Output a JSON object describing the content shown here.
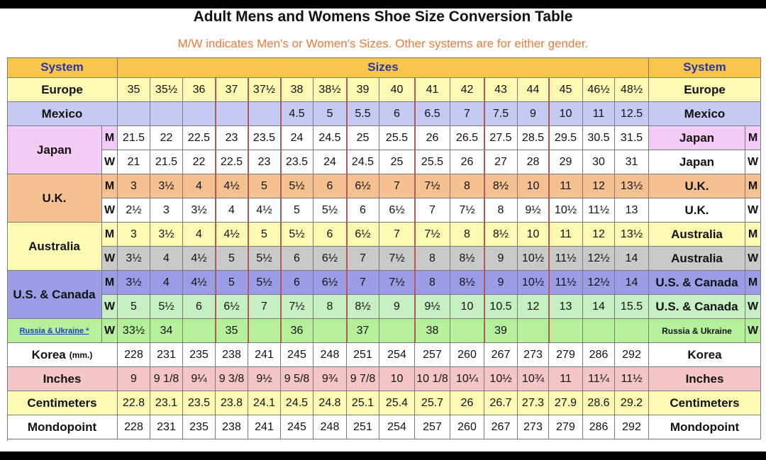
{
  "title": "Adult Mens and Womens Shoe Size Conversion Table",
  "subtitle": "M/W indicates Men's or Women's Sizes. Other systems are for either gender.",
  "header": {
    "system_left": "System",
    "sizes": "Sizes",
    "system_right": "System"
  },
  "colors": {
    "header": "#f9c64d",
    "europe": "#fdfbb3",
    "mexico": "#c6c9f2",
    "japan": "#f3cbf4",
    "uk": "#f6c190",
    "australia": "#fdfbb3",
    "australia_w": "#c9c9c9",
    "us": "#9a9de6",
    "us_w": "#c6f0c3",
    "russia": "#b7f09a",
    "inches": "#f5c6c6",
    "cm": "#fdfbb3",
    "white": "#ffffff"
  },
  "rows": [
    {
      "key": "europe",
      "label": "Europe",
      "mw": "",
      "right": "Europe",
      "right_mw": "",
      "cells": [
        "35",
        "35½",
        "36",
        "37",
        "37½",
        "38",
        "38½",
        "39",
        "40",
        "41",
        "42",
        "43",
        "44",
        "45",
        "46½",
        "48½"
      ]
    },
    {
      "key": "mexico",
      "label": "Mexico",
      "mw": "",
      "right": "Mexico",
      "right_mw": "",
      "cells": [
        "",
        "",
        "",
        "",
        "",
        "4.5",
        "5",
        "5.5",
        "6",
        "6.5",
        "7",
        "7.5",
        "9",
        "10",
        "11",
        "12.5"
      ]
    },
    {
      "key": "japan_m",
      "label": "Japan",
      "mw": "M",
      "right": "Japan",
      "right_mw": "M",
      "cells": [
        "21.5",
        "22",
        "22.5",
        "23",
        "23.5",
        "24",
        "24.5",
        "25",
        "25.5",
        "26",
        "26.5",
        "27.5",
        "28.5",
        "29.5",
        "30.5",
        "31.5"
      ]
    },
    {
      "key": "japan_w",
      "label": "",
      "mw": "W",
      "right": "Japan",
      "right_mw": "W",
      "cells": [
        "21",
        "21.5",
        "22",
        "22.5",
        "23",
        "23.5",
        "24",
        "24.5",
        "25",
        "25.5",
        "26",
        "27",
        "28",
        "29",
        "30",
        "31"
      ]
    },
    {
      "key": "uk_m",
      "label": "U.K.",
      "mw": "M",
      "right": "U.K.",
      "right_mw": "M",
      "cells": [
        "3",
        "3½",
        "4",
        "4½",
        "5",
        "5½",
        "6",
        "6½",
        "7",
        "7½",
        "8",
        "8½",
        "10",
        "11",
        "12",
        "13½"
      ]
    },
    {
      "key": "uk_w",
      "label": "",
      "mw": "W",
      "right": "U.K.",
      "right_mw": "W",
      "cells": [
        "2½",
        "3",
        "3½",
        "4",
        "4½",
        "5",
        "5½",
        "6",
        "6½",
        "7",
        "7½",
        "8",
        "9½",
        "10½",
        "11½",
        "13"
      ]
    },
    {
      "key": "aus_m",
      "label": "Australia",
      "mw": "M",
      "right": "Australia",
      "right_mw": "M",
      "cells": [
        "3",
        "3½",
        "4",
        "4½",
        "5",
        "5½",
        "6",
        "6½",
        "7",
        "7½",
        "8",
        "8½",
        "10",
        "11",
        "12",
        "13½"
      ]
    },
    {
      "key": "aus_w",
      "label": "",
      "mw": "W",
      "right": "Australia",
      "right_mw": "W",
      "cells": [
        "3½",
        "4",
        "4½",
        "5",
        "5½",
        "6",
        "6½",
        "7",
        "7½",
        "8",
        "8½",
        "9",
        "10½",
        "11½",
        "12½",
        "14"
      ]
    },
    {
      "key": "us_m",
      "label": "U.S. & Canada",
      "mw": "M",
      "right": "U.S. & Canada",
      "right_mw": "M",
      "cells": [
        "3½",
        "4",
        "4½",
        "5",
        "5½",
        "6",
        "6½",
        "7",
        "7½",
        "8",
        "8½",
        "9",
        "10½",
        "11½",
        "12½",
        "14"
      ]
    },
    {
      "key": "us_w",
      "label": "",
      "mw": "W",
      "right": "U.S. & Canada",
      "right_mw": "W",
      "cells": [
        "5",
        "5½",
        "6",
        "6½",
        "7",
        "7½",
        "8",
        "8½",
        "9",
        "9½",
        "10",
        "10.5",
        "12",
        "13",
        "14",
        "15.5"
      ]
    },
    {
      "key": "russia",
      "label": "Russia & Ukraine *",
      "mw": "W",
      "right": "Russia & Ukraine",
      "right_mw": "W",
      "cells": [
        "33½",
        "34",
        "",
        "35",
        "",
        "36",
        "",
        "37",
        "",
        "38",
        "",
        "39",
        "",
        "",
        "",
        ""
      ]
    },
    {
      "key": "korea",
      "label": "Korea",
      "label_small": "(mm.)",
      "mw": "",
      "right": "Korea",
      "right_mw": "",
      "cells": [
        "228",
        "231",
        "235",
        "238",
        "241",
        "245",
        "248",
        "251",
        "254",
        "257",
        "260",
        "267",
        "273",
        "279",
        "286",
        "292"
      ]
    },
    {
      "key": "inches",
      "label": "Inches",
      "mw": "",
      "right": "Inches",
      "right_mw": "",
      "cells": [
        "9",
        "9 1/8",
        "9¼",
        "9 3/8",
        "9½",
        "9 5/8",
        "9¾",
        "9 7/8",
        "10",
        "10 1/8",
        "10¼",
        "10½",
        "10¾",
        "11",
        "11¼",
        "11½"
      ]
    },
    {
      "key": "cm",
      "label": "Centimeters",
      "mw": "",
      "right": "Centimeters",
      "right_mw": "",
      "cells": [
        "22.8",
        "23.1",
        "23.5",
        "23.8",
        "24.1",
        "24.5",
        "24.8",
        "25.1",
        "25.4",
        "25.7",
        "26",
        "26.7",
        "27.3",
        "27.9",
        "28.6",
        "29.2"
      ]
    },
    {
      "key": "mondo",
      "label": "Mondopoint",
      "mw": "",
      "right": "Mondopoint",
      "right_mw": "",
      "cells": [
        "228",
        "231",
        "235",
        "238",
        "241",
        "245",
        "248",
        "251",
        "254",
        "257",
        "260",
        "267",
        "273",
        "279",
        "286",
        "292"
      ]
    }
  ]
}
